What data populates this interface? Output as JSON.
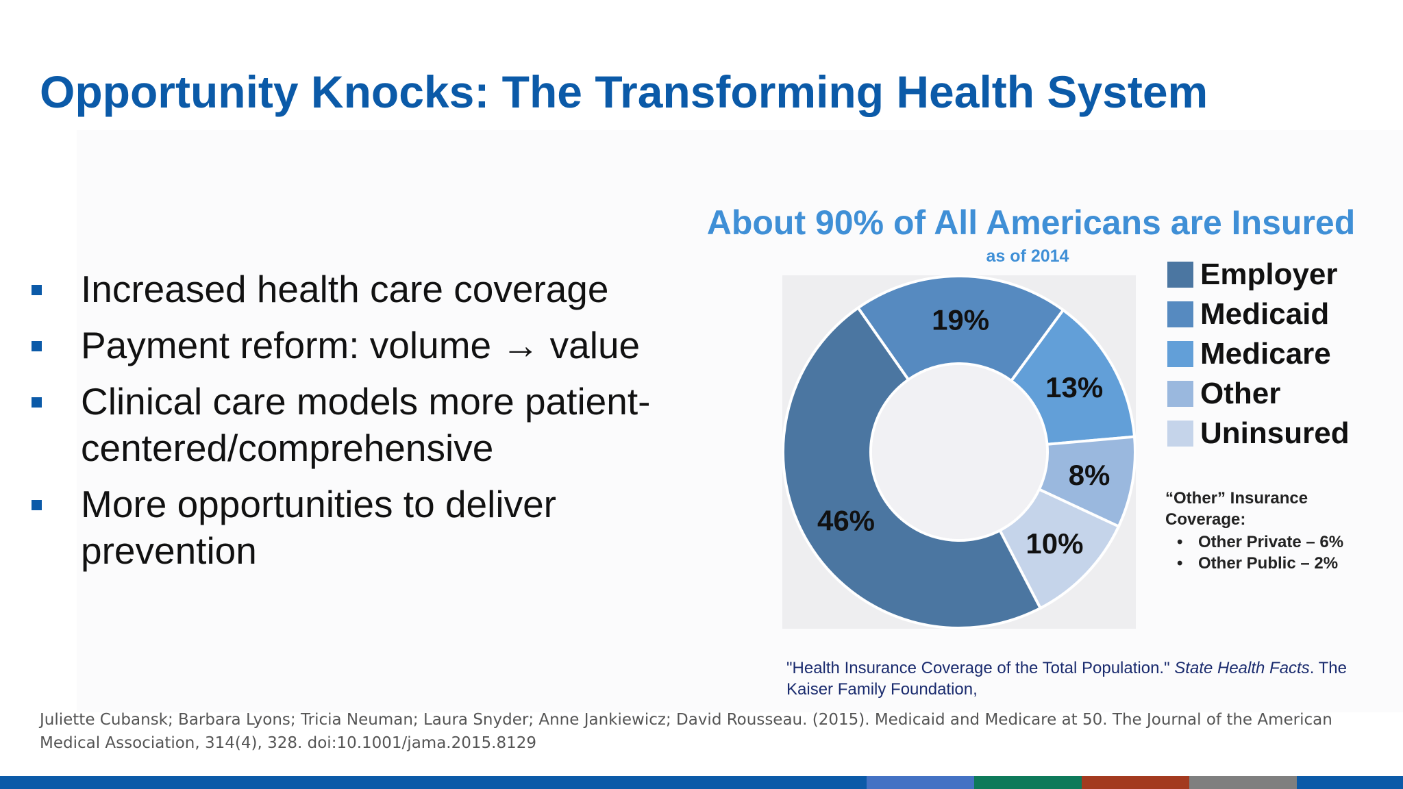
{
  "slide": {
    "title": "Opportunity Knocks: The Transforming Health System",
    "bullets": [
      {
        "text": "Increased health care coverage"
      },
      {
        "text": "Payment reform: volume → value"
      },
      {
        "text": "Clinical care models more patient-centered/comprehensive"
      },
      {
        "text": "More opportunities to deliver prevention"
      }
    ],
    "source": {
      "part1": "\"Health Insurance Coverage of the Total Population.\" ",
      "italic": "State Health Facts",
      "part2": ". The Kaiser Family Foundation,"
    },
    "citation": "Juliette Cubansk; Barbara Lyons; Tricia Neuman; Laura Snyder; Anne Jankiewicz; David Rousseau. (2015). Medicaid and Medicare at 50. The Journal of the American Medical Association, 314(4), 328.  doi:10.1001/jama.2015.8129",
    "bottom_bar_colors": [
      "#0b5aa8",
      "#4472c4",
      "#0e7a5a",
      "#a33a1f",
      "#7f7f7f",
      "#0b5aa8"
    ]
  },
  "chart_data": {
    "type": "pie",
    "title": "About 90% of All Americans are Insured",
    "subtitle": "as of 2014",
    "donut": true,
    "slices": [
      {
        "name": "Employer",
        "value": 46,
        "label": "46%",
        "color": "#4b76a1"
      },
      {
        "name": "Medicaid",
        "value": 19,
        "label": "19%",
        "color": "#568ac0"
      },
      {
        "name": "Medicare",
        "value": 13,
        "label": "13%",
        "color": "#629fd8"
      },
      {
        "name": "Other",
        "value": 8,
        "label": "8%",
        "color": "#9ab8de"
      },
      {
        "name": "Uninsured",
        "value": 10,
        "label": "10%",
        "color": "#c5d4ea"
      }
    ],
    "legend_placement": "right",
    "note": {
      "title": "“Other” Insurance Coverage:",
      "items": [
        {
          "text": "Other Private – 6%"
        },
        {
          "text": "Other Public – 2%"
        }
      ]
    }
  }
}
